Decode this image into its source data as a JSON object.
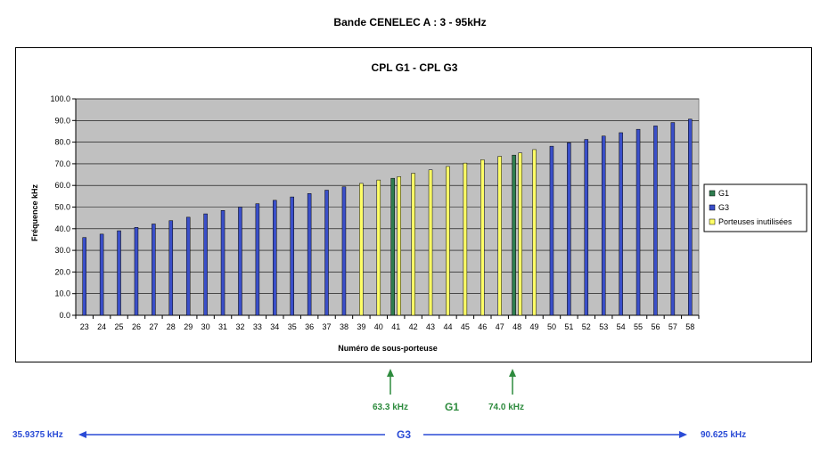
{
  "page_title": "Bande CENELEC A : 3 - 95kHz",
  "colors": {
    "g1": "#2e7d4f",
    "g3": "#3a4fc9",
    "unused": "#ffff66",
    "plot_bg": "#c0c0c0",
    "annotation_green": "#2e8b3e",
    "annotation_blue": "#2a4bd6"
  },
  "chart_data": {
    "type": "bar",
    "title": "CPL G1  -  CPL G3",
    "xlabel": "Numéro de sous-porteuse",
    "ylabel": "Fréquence kHz",
    "ylim": [
      0,
      100
    ],
    "yticks": [
      "0.0",
      "10.0",
      "20.0",
      "30.0",
      "40.0",
      "50.0",
      "60.0",
      "70.0",
      "80.0",
      "90.0",
      "100.0"
    ],
    "grid": true,
    "legend_position": "right",
    "categories": [
      "23",
      "24",
      "25",
      "26",
      "27",
      "28",
      "29",
      "30",
      "31",
      "32",
      "33",
      "34",
      "35",
      "36",
      "37",
      "38",
      "39",
      "40",
      "41",
      "42",
      "43",
      "44",
      "45",
      "46",
      "47",
      "48",
      "49",
      "50",
      "51",
      "52",
      "53",
      "54",
      "55",
      "56",
      "57",
      "58"
    ],
    "series": [
      {
        "name": "G1",
        "values": [
          null,
          null,
          null,
          null,
          null,
          null,
          null,
          null,
          null,
          null,
          null,
          null,
          null,
          null,
          null,
          null,
          null,
          null,
          63.3,
          null,
          null,
          null,
          null,
          null,
          null,
          74.0,
          null,
          null,
          null,
          null,
          null,
          null,
          null,
          null,
          null,
          null
        ]
      },
      {
        "name": "G3",
        "values": [
          35.9375,
          37.5,
          39.0625,
          40.625,
          42.1875,
          43.75,
          45.3125,
          46.875,
          48.4375,
          50.0,
          51.5625,
          53.125,
          54.6875,
          56.25,
          57.8125,
          59.375,
          null,
          null,
          null,
          null,
          null,
          null,
          null,
          null,
          null,
          null,
          null,
          78.125,
          79.6875,
          81.25,
          82.8125,
          84.375,
          85.9375,
          87.5,
          89.0625,
          90.625
        ]
      },
      {
        "name": "Porteuses inutilisées",
        "values": [
          null,
          null,
          null,
          null,
          null,
          null,
          null,
          null,
          null,
          null,
          null,
          null,
          null,
          null,
          null,
          null,
          60.9375,
          62.5,
          64.0625,
          65.625,
          67.1875,
          68.75,
          70.3125,
          71.875,
          73.4375,
          75.0,
          76.5625,
          null,
          null,
          null,
          null,
          null,
          null,
          null,
          null,
          null
        ]
      }
    ]
  },
  "annotations": {
    "g1_low": "63.3 kHz",
    "g1_label": "G1",
    "g1_high": "74.0 kHz",
    "g3_low": "35.9375 kHz",
    "g3_label": "G3",
    "g3_high": "90.625 kHz"
  }
}
